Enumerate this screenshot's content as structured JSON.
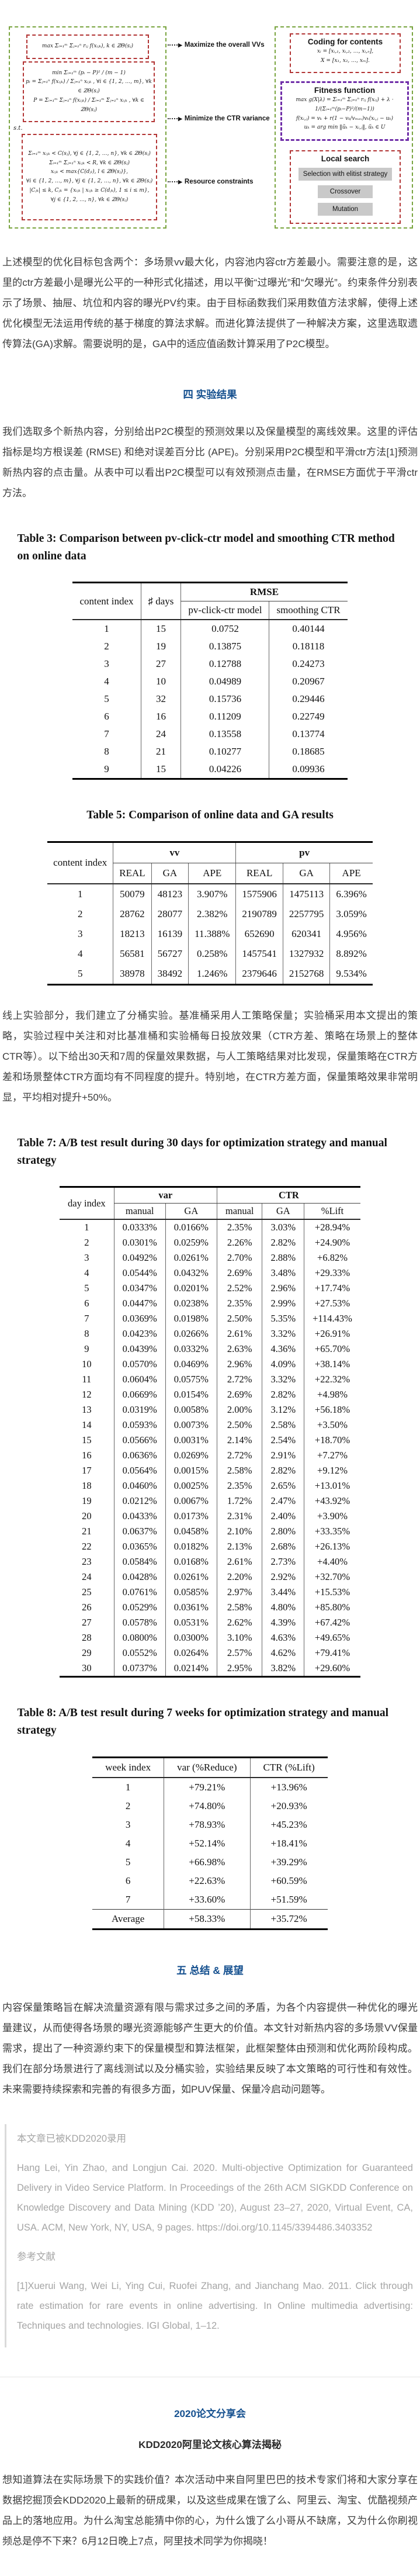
{
  "colors": {
    "accent_blue": "#15508f",
    "green_border": "#79a43f",
    "red_border": "#b23434",
    "purple_border": "#6f2da8",
    "step_button_bg": "#c9c9c9",
    "quote_text": "#a5a5a5"
  },
  "diagram": {
    "objective1": "max Σᵢ₌₁ᵐ Σⱼ₌₁ⁿ rᵢⱼ f(xᵢⱼₖ), k ∈ ℤΘ(sⱼ)",
    "objective2_lines": [
      "min  Σᵢ₌₁ᵐ (pᵢ − P)² / (m − 1)",
      "pᵢ = Σⱼ₌₁ⁿ f(xᵢⱼₖ) / Σⱼ₌₁ⁿ xᵢⱼₖ , ∀i ∈ {1, 2, …, m}, ∀k ∈ ℤΘ(sⱼ)",
      "P = Σᵢ₌₁ᵐ Σⱼ₌₁ⁿ f(xᵢⱼₖ) / Σᵢ₌₁ᵐ Σⱼ₌₁ⁿ xᵢⱼₖ , ∀k ∈ ℤΘ(sⱼ)"
    ],
    "st_label": "s.t.",
    "constraint_lines": [
      "Σᵢ₌₁ᵐ xᵢⱼₖ < C(sⱼ), ∀j ∈ {1, 2, …, n}, ∀k ∈ ℤΘ(sⱼ)",
      "Σᵢ₌₁ᵐ Σⱼ₌₁ⁿ xᵢⱼₖ < R, ∀k ∈ ℤΘ(sⱼ)",
      "xᵢⱼₖ < max{C(dⱼₗ), l ∈ ℤΘ(sⱼ)},",
      "∀i ∈ {1, 2, …, m}, ∀j ∈ {1, 2, …, n}, ∀k ∈ ℤΘ(sⱼ)",
      "|Cⱼₖ| ≤ k, Cⱼₖ = {xᵢⱼₖ | xᵢⱼₖ ≥ C(dⱼₖ), 1 ≤ i ≤ m},",
      "∀j ∈ {1, 2, …, n}, ∀k ∈ ℤΘ(sⱼ)"
    ],
    "label_maximize": "Maximize the overall VVs",
    "label_minimize": "Minimize the CTR variance",
    "label_resource": "Resource constraints",
    "arrow_glyph": "▶",
    "coding_title": "Coding for contents",
    "coding_lines": [
      "xᵢ = [xᵢ,₁, xᵢ,₂, …, xᵢ,ₙ],",
      "X = [x₁, x₂, …, xₘ]."
    ],
    "fitness_title": "Fitness function",
    "fitness_lines": [
      "max g(X|λ) = Σᵢ₌₁ᵐ Σⱼ₌₁ⁿ rᵢⱼ f(xᵢⱼ) + λ · 1/(Σᵢ₌₁ᵐ(pᵢ−P)²/(m−1))",
      "f(xᵢ,ⱼ) = vₖ + r(1 − vₖ/vₘₐₓ)vₖ(xᵢ,ⱼ − uₖ)",
      "uₖ = arg min ‖ũₖ − xᵢ,ⱼ‖, ũₖ ∈ U"
    ],
    "local_title": "Local search",
    "local_steps": [
      "Selection with elitist strategy",
      "Crossover",
      "Mutation"
    ]
  },
  "content": {
    "para1": "上述模型的优化目标包含两个：多场景vv最大化，内容池内容ctr方差最小。需要注意的是，这里的ctr方差最小是曝光公平的一种形式化描述，用以平衡“过曝光”和“欠曝光”。约束条件分别表示了场景、抽屉、坑位和内容的曝光PV约束。由于目标函数我们采用数值方法求解，使得上述优化模型无法运用传统的基于梯度的算法求解。而进化算法提供了一种解决方案，这里选取遗传算法(GA)求解。需要说明的是，GA中的适应值函数计算采用了P2C模型。",
    "heading_sec4": "四  实验结果",
    "para2": "我们选取多个新热内容，分别给出P2C模型的预测效果以及保量模型的离线效果。这里的评估指标是均方根误差 (RMSE) 和绝对误差百分比 (APE)。分别采用P2C模型和平滑ctr方法[1]预测新热内容的点击量。从表中可以看出P2C模型可以有效预测点击量，在RMSE方面优于平滑ctr方法。",
    "para3": "线上实验部分，我们建立了分桶实验。基准桶采用人工策略保量；实验桶采用本文提出的策略，实验过程中关注和对比基准桶和实验桶每日投放效果（CTR方差、策略在场景上的整体CTR等）。以下给出30天和7周的保量效果数据，与人工策略结果对比发现，保量策略在CTR方差和场景整体CTR方面均有不同程度的提升。特别地，在CTR方差方面，保量策略效果非常明显，平均相对提升+50%。",
    "heading_sec5": "五  总结 & 展望",
    "para4": "内容保量策略旨在解决流量资源有限与需求过多之间的矛盾，为各个内容提供一种优化的曝光量建议，从而使得各场景的曝光资源能够产生更大的价值。本文针对新热内容的多场景VV保量需求，提出了一种资源约束下的保量模型和算法框架，此框架整体由预测和优化两阶段构成。我们在部分场景进行了离线测试以及分桶实验，实验结果反映了本文策略的可行性和有效性。未来需要持续探索和完善的有很多方面，如PUV保量、保量冷启动问题等。"
  },
  "table3": {
    "caption": "Table 3: Comparison between pv-click-ctr model and smoothing CTR method on online data",
    "col_content_index": "content index",
    "col_days": "♯ days",
    "col_rmse": "RMSE",
    "col_model": "pv-click-ctr model",
    "col_smoothing": "smoothing CTR",
    "rows": [
      [
        "1",
        "15",
        "0.0752",
        "0.40144"
      ],
      [
        "2",
        "19",
        "0.13875",
        "0.18118"
      ],
      [
        "3",
        "27",
        "0.12788",
        "0.24273"
      ],
      [
        "4",
        "10",
        "0.04989",
        "0.20967"
      ],
      [
        "5",
        "32",
        "0.15736",
        "0.29446"
      ],
      [
        "6",
        "16",
        "0.11209",
        "0.22749"
      ],
      [
        "7",
        "24",
        "0.13558",
        "0.13774"
      ],
      [
        "8",
        "21",
        "0.10277",
        "0.18685"
      ],
      [
        "9",
        "15",
        "0.04226",
        "0.09936"
      ]
    ]
  },
  "table5": {
    "caption": "Table 5: Comparison of online data and GA results",
    "col_content_index": "content index",
    "col_vv": "vv",
    "col_pv": "pv",
    "sub_real": "REAL",
    "sub_ga": "GA",
    "sub_ape": "APE",
    "rows": [
      [
        "1",
        "50079",
        "48123",
        "3.907%",
        "1575906",
        "1475113",
        "6.396%"
      ],
      [
        "2",
        "28762",
        "28077",
        "2.382%",
        "2190789",
        "2257795",
        "3.059%"
      ],
      [
        "3",
        "18213",
        "16139",
        "11.388%",
        "652690",
        "620341",
        "4.956%"
      ],
      [
        "4",
        "56581",
        "56727",
        "0.258%",
        "1457541",
        "1327932",
        "8.892%"
      ],
      [
        "5",
        "38978",
        "38492",
        "1.246%",
        "2379646",
        "2152768",
        "9.534%"
      ]
    ]
  },
  "table7": {
    "caption": "Table 7: A/B test result during 30 days for optimization strategy and manual strategy",
    "col_day_index": "day index",
    "col_var": "var",
    "col_ctr": "CTR",
    "sub_manual": "manual",
    "sub_ga": "GA",
    "sub_lift": "%Lift",
    "rows": [
      [
        "1",
        "0.0333%",
        "0.0166%",
        "2.35%",
        "3.03%",
        "+28.94%"
      ],
      [
        "2",
        "0.0301%",
        "0.0259%",
        "2.26%",
        "2.82%",
        "+24.90%"
      ],
      [
        "3",
        "0.0492%",
        "0.0261%",
        "2.70%",
        "2.88%",
        "+6.82%"
      ],
      [
        "4",
        "0.0544%",
        "0.0432%",
        "2.69%",
        "3.48%",
        "+29.33%"
      ],
      [
        "5",
        "0.0347%",
        "0.0201%",
        "2.52%",
        "2.96%",
        "+17.74%"
      ],
      [
        "6",
        "0.0447%",
        "0.0238%",
        "2.35%",
        "2.99%",
        "+27.53%"
      ],
      [
        "7",
        "0.0369%",
        "0.0198%",
        "2.50%",
        "5.35%",
        "+114.43%"
      ],
      [
        "8",
        "0.0423%",
        "0.0266%",
        "2.61%",
        "3.32%",
        "+26.91%"
      ],
      [
        "9",
        "0.0439%",
        "0.0332%",
        "2.63%",
        "4.36%",
        "+65.70%"
      ],
      [
        "10",
        "0.0570%",
        "0.0469%",
        "2.96%",
        "4.09%",
        "+38.14%"
      ],
      [
        "11",
        "0.0604%",
        "0.0575%",
        "2.72%",
        "3.32%",
        "+22.32%"
      ],
      [
        "12",
        "0.0669%",
        "0.0154%",
        "2.69%",
        "2.82%",
        "+4.98%"
      ],
      [
        "13",
        "0.0319%",
        "0.0058%",
        "2.00%",
        "3.12%",
        "+56.18%"
      ],
      [
        "14",
        "0.0593%",
        "0.0073%",
        "2.50%",
        "2.58%",
        "+3.50%"
      ],
      [
        "15",
        "0.0566%",
        "0.0031%",
        "2.14%",
        "2.54%",
        "+18.70%"
      ],
      [
        "16",
        "0.0636%",
        "0.0269%",
        "2.72%",
        "2.91%",
        "+7.27%"
      ],
      [
        "17",
        "0.0564%",
        "0.0015%",
        "2.58%",
        "2.82%",
        "+9.12%"
      ],
      [
        "18",
        "0.0460%",
        "0.0025%",
        "2.35%",
        "2.65%",
        "+13.01%"
      ],
      [
        "19",
        "0.0212%",
        "0.0067%",
        "1.72%",
        "2.47%",
        "+43.92%"
      ],
      [
        "20",
        "0.0433%",
        "0.0173%",
        "2.31%",
        "2.40%",
        "+3.90%"
      ],
      [
        "21",
        "0.0637%",
        "0.0458%",
        "2.10%",
        "2.80%",
        "+33.35%"
      ],
      [
        "22",
        "0.0365%",
        "0.0182%",
        "2.13%",
        "2.68%",
        "+26.13%"
      ],
      [
        "23",
        "0.0584%",
        "0.0168%",
        "2.61%",
        "2.73%",
        "+4.40%"
      ],
      [
        "24",
        "0.0428%",
        "0.0261%",
        "2.20%",
        "2.92%",
        "+32.70%"
      ],
      [
        "25",
        "0.0761%",
        "0.0585%",
        "2.97%",
        "3.44%",
        "+15.53%"
      ],
      [
        "26",
        "0.0529%",
        "0.0361%",
        "2.58%",
        "4.80%",
        "+85.80%"
      ],
      [
        "27",
        "0.0578%",
        "0.0531%",
        "2.62%",
        "4.39%",
        "+67.42%"
      ],
      [
        "28",
        "0.0800%",
        "0.0300%",
        "3.10%",
        "4.63%",
        "+49.65%"
      ],
      [
        "29",
        "0.0552%",
        "0.0264%",
        "2.57%",
        "4.62%",
        "+79.41%"
      ],
      [
        "30",
        "0.0737%",
        "0.0214%",
        "2.95%",
        "3.82%",
        "+29.60%"
      ]
    ]
  },
  "table8": {
    "caption": "Table 8: A/B test result during 7 weeks for optimization strategy and manual strategy",
    "col_week": "week index",
    "col_var": "var (%Reduce)",
    "col_ctr": "CTR (%Lift)",
    "rows": [
      [
        "1",
        "+79.21%",
        "+13.96%"
      ],
      [
        "2",
        "+74.80%",
        "+20.93%"
      ],
      [
        "3",
        "+78.93%",
        "+45.23%"
      ],
      [
        "4",
        "+52.14%",
        "+18.41%"
      ],
      [
        "5",
        "+66.98%",
        "+39.29%"
      ],
      [
        "6",
        "+22.63%",
        "+60.59%"
      ],
      [
        "7",
        "+33.60%",
        "+51.59%"
      ],
      [
        "Average",
        "+58.33%",
        "+35.72%"
      ]
    ]
  },
  "quote": {
    "lines": [
      "本文章已被KDD2020录用",
      "Hang Lei, Yin Zhao, and Longjun Cai. 2020. Multi-objective Optimization for Guaranteed Delivery in Video Service Platform. In Proceedings of the 26th ACM SIGKDD Conference on Knowledge Discovery and Data Mining (KDD ’20), August 23–27, 2020, Virtual Event, CA, USA. ACM, New York, NY, USA, 9 pages. https://doi.org/10.1145/3394486.3403352",
      "参考文献",
      "[1]Xuerui Wang, Wei Li, Ying Cui, Ruofei Zhang, and Jianchang Mao. 2011. Click through rate estimation for rare events in online advertising. In Online multimedia advertising: Techniques and technologies. IGI Global, 1–12."
    ]
  },
  "footer": {
    "event_title": "2020论文分享会",
    "talk_title": "KDD2020阿里论文核心算法揭秘",
    "para": "想知道算法在实际场景下的实践价值？本次活动中来自阿里巴巴的技术专家们将和大家分享在数据挖掘顶会KDD2020上最新的研成果，以及这些成果在饿了么、阿里云、淘宝、优酷视频产品上的落地应用。为什么淘宝总能猜中你的心，为什么饿了么小哥从不缺席，又为什么你刷视频总是停不下来？6月12日晚上7点，阿里技术同学为你揭晓！"
  }
}
